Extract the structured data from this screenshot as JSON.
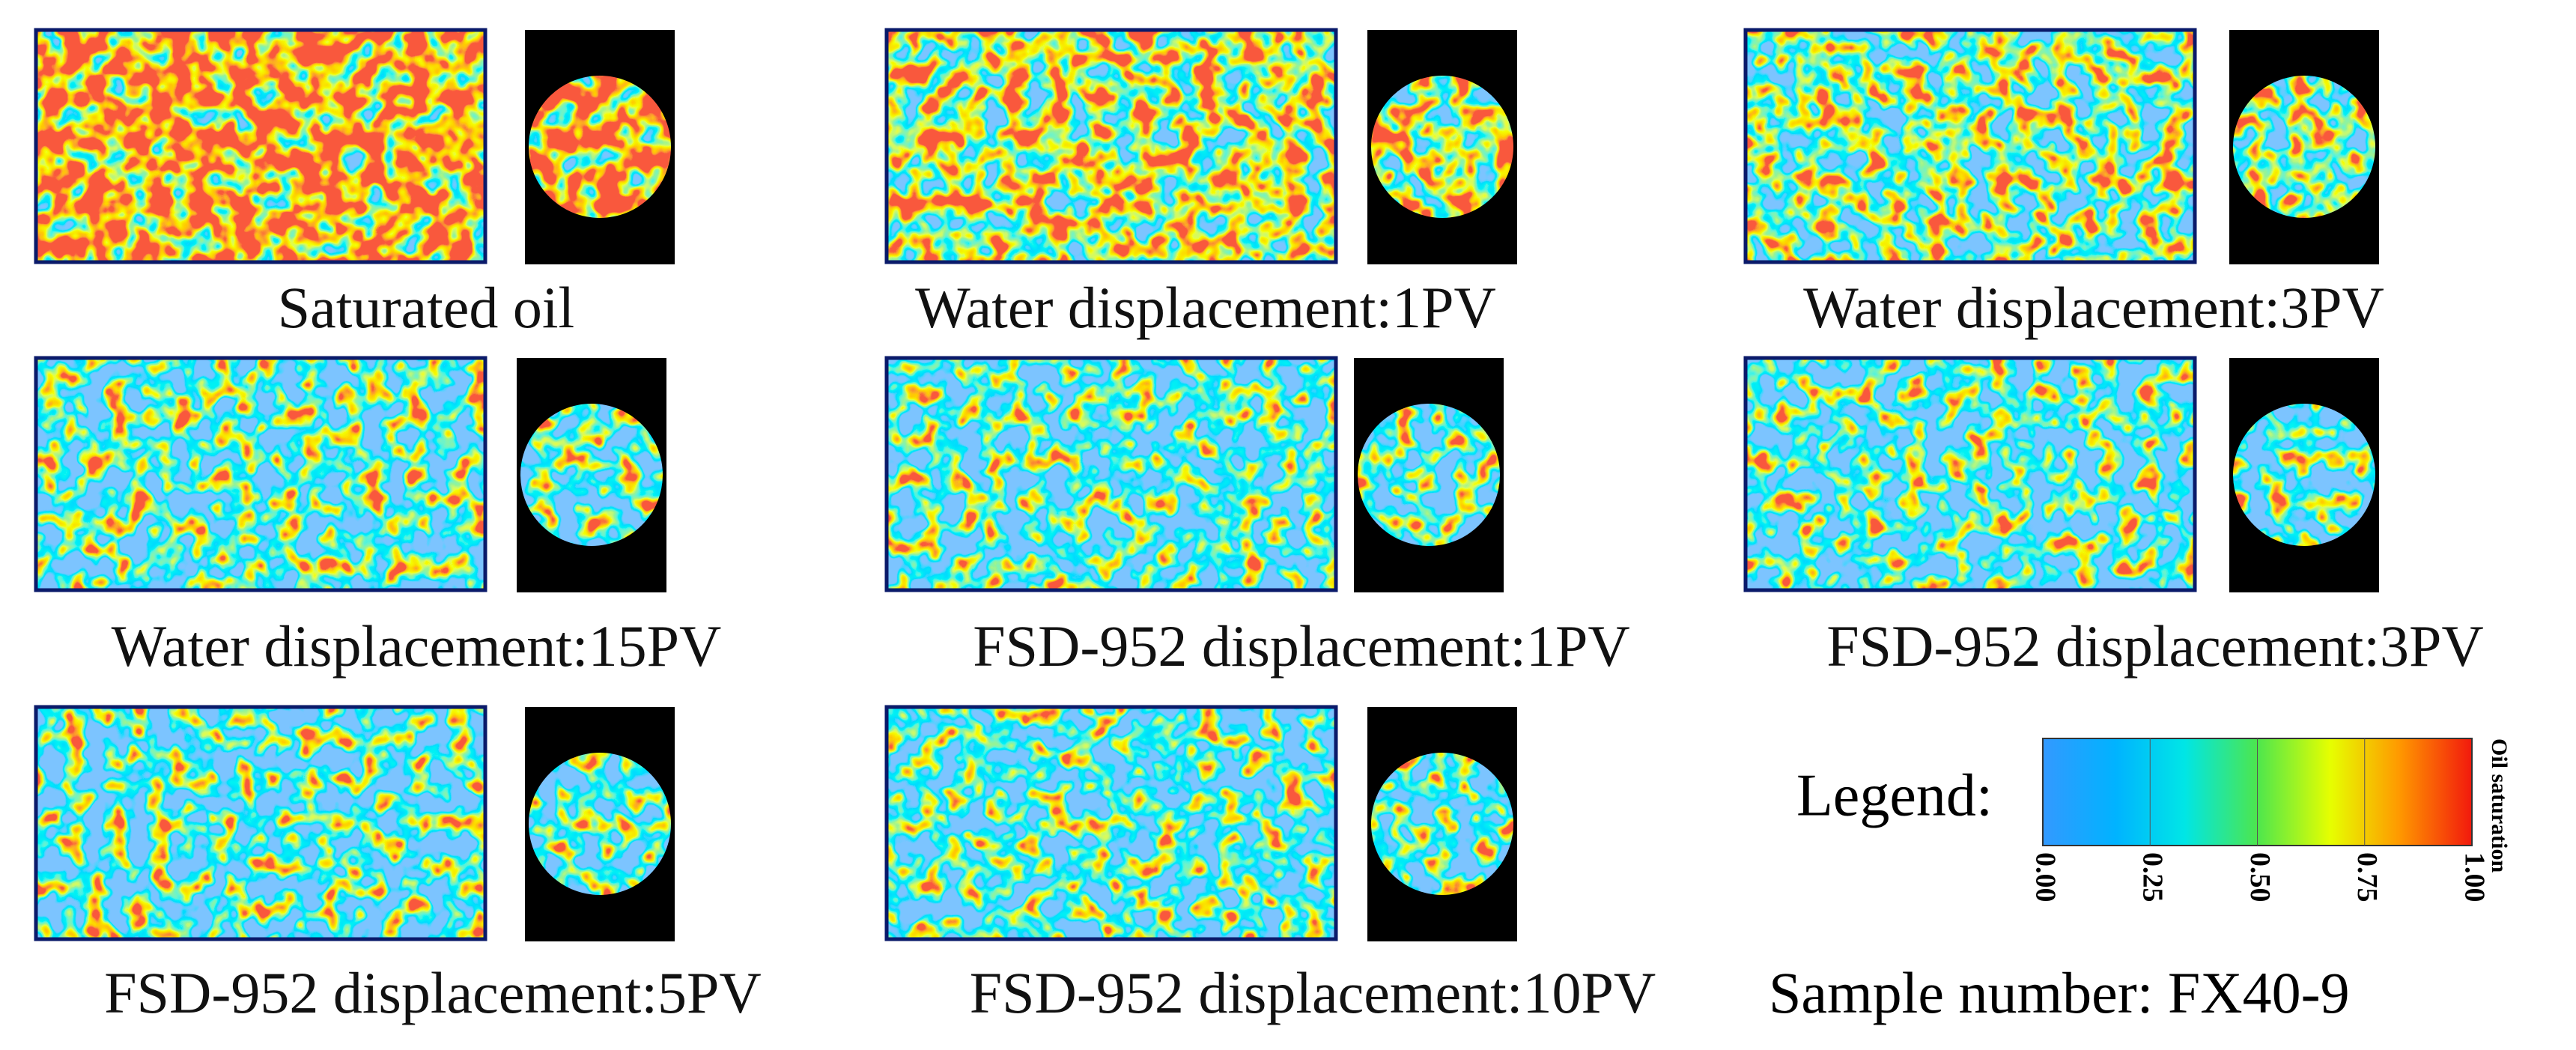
{
  "panels": [
    {
      "label": "Saturated oil"
    },
    {
      "label": "Water displacement:1PV"
    },
    {
      "label": "Water displacement:3PV"
    },
    {
      "label": "Water displacement:15PV"
    },
    {
      "label": "FSD-952 displacement:1PV"
    },
    {
      "label": "FSD-952 displacement:3PV"
    },
    {
      "label": "FSD-952 displacement:5PV"
    },
    {
      "label": "FSD-952 displacement:10PV"
    }
  ],
  "legend": {
    "title": "Legend:",
    "axis_label": "Oil saturation",
    "ticks": [
      "0.00",
      "0.25",
      "0.50",
      "0.75",
      "1.00"
    ]
  },
  "sample": "Sample number: FX40-9"
}
